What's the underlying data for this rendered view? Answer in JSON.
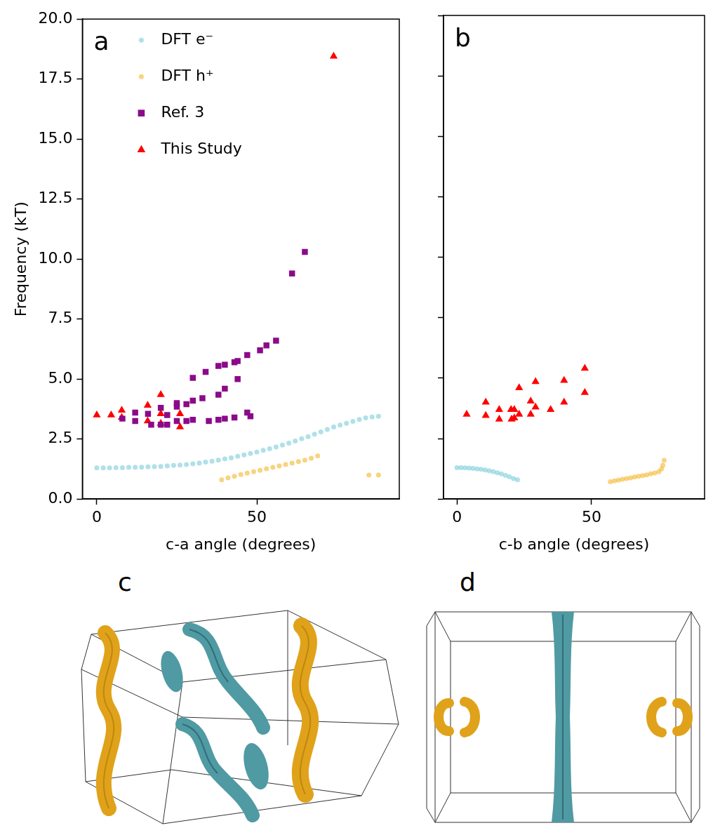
{
  "chart_data": [
    {
      "type": "scatter",
      "title": "a",
      "x_label": "c-a angle (degrees)",
      "y_label": "Frequency (kT)",
      "xlim": [
        -4.5,
        94.5
      ],
      "xticks": [
        0,
        50
      ],
      "ylim": [
        0,
        20
      ],
      "yticks": [
        {
          "value": 0,
          "label": "0.0"
        },
        2.5,
        {
          "value": 5,
          "label": "5.0"
        },
        7.5,
        {
          "value": 10,
          "label": "10.0"
        },
        12.5,
        {
          "value": 15,
          "label": "15.0"
        },
        17.5,
        {
          "value": 20,
          "label": "20.0"
        }
      ],
      "grid": false,
      "legend": "upper left",
      "series": [
        {
          "name": "DFT e⁻",
          "color": "#5fc3d3",
          "marker": "circle",
          "x": [
            0,
            2,
            4,
            6,
            8,
            10,
            12,
            14,
            16,
            18,
            20,
            22,
            24,
            26,
            28,
            30,
            32,
            34,
            36,
            38,
            40,
            42,
            44,
            46,
            48,
            50,
            52,
            54,
            56,
            58,
            60,
            62,
            64,
            66,
            68,
            70,
            72,
            74,
            76,
            78,
            80,
            82,
            84,
            86,
            88
          ],
          "values": [
            1.3,
            1.3,
            1.3,
            1.31,
            1.31,
            1.32,
            1.32,
            1.33,
            1.34,
            1.35,
            1.36,
            1.38,
            1.4,
            1.42,
            1.44,
            1.47,
            1.5,
            1.54,
            1.58,
            1.62,
            1.67,
            1.72,
            1.78,
            1.84,
            1.9,
            1.96,
            2.03,
            2.1,
            2.17,
            2.25,
            2.33,
            2.42,
            2.51,
            2.6,
            2.7,
            2.8,
            2.9,
            3.0,
            3.08,
            3.16,
            3.24,
            3.32,
            3.38,
            3.42,
            3.45
          ]
        },
        {
          "name": "DFT h⁺",
          "color": "#f2a900",
          "marker": "circle",
          "x": [
            39,
            41,
            43,
            45,
            47,
            49,
            51,
            53,
            55,
            57,
            59,
            61,
            63,
            65,
            67,
            69,
            85,
            88
          ],
          "values": [
            0.8,
            0.88,
            0.95,
            1.02,
            1.08,
            1.14,
            1.2,
            1.26,
            1.32,
            1.38,
            1.44,
            1.5,
            1.56,
            1.62,
            1.7,
            1.8,
            1.0,
            1.0
          ]
        },
        {
          "name": "Ref. 3",
          "color": "#8b0a8b",
          "marker": "square",
          "x": [
            8,
            12,
            12,
            16,
            17,
            20,
            20,
            22,
            22,
            25,
            25,
            25,
            28,
            28,
            30,
            30,
            30,
            33,
            34,
            35,
            38,
            38,
            38,
            40,
            40,
            40,
            43,
            44,
            44,
            43,
            47,
            47,
            48,
            51,
            53,
            56,
            61,
            65
          ],
          "values": [
            3.35,
            3.6,
            3.25,
            3.55,
            3.1,
            3.8,
            3.1,
            3.5,
            3.1,
            4.0,
            3.25,
            3.85,
            3.95,
            3.25,
            4.1,
            5.05,
            3.3,
            4.2,
            5.3,
            3.25,
            4.35,
            5.55,
            3.3,
            4.6,
            5.6,
            3.35,
            5.7,
            5.0,
            5.75,
            3.4,
            6.0,
            3.6,
            3.45,
            6.2,
            6.4,
            6.6,
            9.4,
            10.3
          ]
        },
        {
          "name": "This Study",
          "color": "#ff0000",
          "marker": "triangle",
          "x": [
            0,
            4.5,
            7.8,
            7.8,
            15.9,
            15.9,
            20,
            20,
            20,
            26,
            26,
            74
          ],
          "values": [
            3.5,
            3.5,
            3.7,
            3.4,
            3.9,
            3.25,
            4.35,
            3.55,
            3.15,
            3.55,
            3.0,
            18.45
          ]
        }
      ]
    },
    {
      "type": "scatter",
      "title": "b",
      "x_label": "c-b angle (degrees)",
      "xlim": [
        -5,
        92
      ],
      "xticks": [
        0,
        50
      ],
      "ylim": [
        0,
        20
      ],
      "yticks": [
        {
          "value": 0,
          "label": "0.0"
        },
        2.5,
        {
          "value": 5,
          "label": "5.0"
        },
        7.5,
        {
          "value": 10,
          "label": "10.0"
        },
        12.5,
        {
          "value": 15,
          "label": "15.0"
        },
        17.5,
        {
          "value": 20,
          "label": "20.0"
        }
      ],
      "grid": false,
      "tick_labels": "x",
      "series": [
        {
          "name": "DFT e⁻",
          "color": "#5fc3d3",
          "marker": "circle",
          "x": [
            0,
            1.5,
            3,
            4.5,
            6,
            7.5,
            9,
            10.5,
            12,
            13.5,
            15,
            16.5,
            18,
            19.5,
            21,
            22.5
          ],
          "values": [
            1.3,
            1.3,
            1.29,
            1.28,
            1.27,
            1.25,
            1.23,
            1.2,
            1.17,
            1.13,
            1.09,
            1.04,
            0.98,
            0.92,
            0.85,
            0.8
          ]
        },
        {
          "name": "DFT h⁺",
          "color": "#f2a900",
          "marker": "circle",
          "x": [
            57,
            58.5,
            60,
            61.5,
            63,
            64.5,
            66,
            67.5,
            69,
            70.5,
            72,
            73.5,
            75,
            76,
            76.5,
            77
          ],
          "values": [
            0.72,
            0.75,
            0.78,
            0.82,
            0.85,
            0.88,
            0.91,
            0.94,
            0.97,
            1.0,
            1.04,
            1.08,
            1.13,
            1.25,
            1.4,
            1.6
          ]
        },
        {
          "name": "This Study",
          "color": "#ff0000",
          "marker": "triangle",
          "x": [
            3.6,
            10.7,
            10.7,
            15.7,
            15.7,
            20.1,
            20.3,
            21.3,
            21.3,
            23.1,
            23.1,
            27.4,
            27.4,
            29.2,
            29.2,
            34.8,
            39.8,
            39.8,
            47.5,
            47.5
          ],
          "values": [
            3.5,
            4.0,
            3.45,
            3.7,
            3.3,
            3.7,
            3.3,
            3.35,
            3.7,
            4.6,
            3.5,
            4.05,
            3.5,
            4.85,
            3.8,
            3.7,
            4.9,
            4.0,
            5.4,
            4.4
          ]
        }
      ]
    }
  ],
  "images": [
    {
      "label": "c"
    },
    {
      "label": "d"
    }
  ]
}
